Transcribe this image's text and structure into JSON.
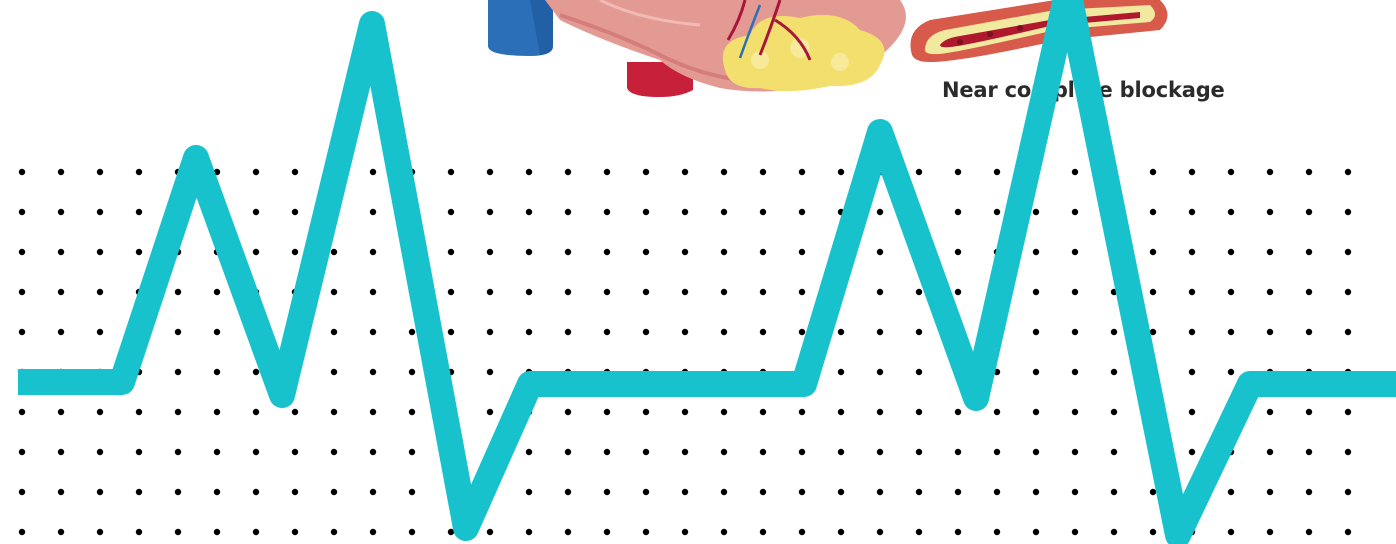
{
  "illustration": {
    "caption": "Near complete blockage"
  },
  "colors": {
    "background": "#ffffff",
    "dots": "#000000",
    "ecg_line": "#17c2cc",
    "heart_muscle": "#e39a93",
    "heart_shadow": "#c96b6a",
    "vein_blue": "#2b6fb8",
    "artery_red": "#c7203a",
    "fat_yellow": "#f3df6e",
    "artery_wall": "#d85a4a",
    "plaque": "#f2e9a0",
    "blood": "#b0182d",
    "caption_text": "#2b2b2b"
  },
  "icons": {
    "heart": "heart-illustration-icon",
    "artery": "blocked-artery-icon",
    "ecg": "heartbeat-line-icon"
  }
}
